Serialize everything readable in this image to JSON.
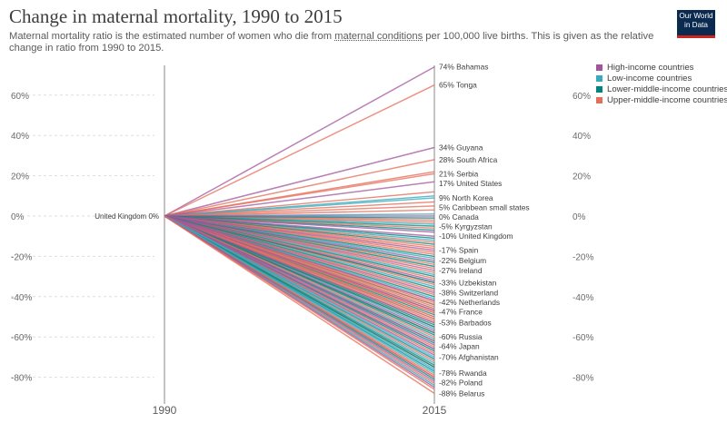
{
  "header": {
    "title": "Change in maternal mortality, 1990 to 2015",
    "subtitle_pre": "Maternal mortality ratio is the estimated number of women who die from ",
    "subtitle_link": "maternal conditions",
    "subtitle_post": " per 100,000 live births. This is given as the relative change in ratio from 1990 to 2015."
  },
  "logo": {
    "line1": "Our World",
    "line2": "in Data"
  },
  "colors": {
    "high": "#a2559c",
    "low": "#38aaba",
    "lower_middle": "#00847e",
    "upper_middle": "#e56e5a",
    "axis": "#888888",
    "grid": "#dddddd"
  },
  "legend": [
    {
      "name": "High-income countries",
      "color": "#a2559c"
    },
    {
      "name": "Low-income countries",
      "color": "#38aaba"
    },
    {
      "name": "Lower-middle-income countries",
      "color": "#00847e"
    },
    {
      "name": "Upper-middle-income countries",
      "color": "#e56e5a"
    }
  ],
  "chart_data": {
    "type": "line",
    "title": "Change in maternal mortality, 1990 to 2015",
    "x": [
      "1990",
      "2015"
    ],
    "ylim": [
      -90,
      75
    ],
    "yticks": [
      60,
      40,
      20,
      0,
      -20,
      -40,
      -60,
      -80
    ],
    "ytick_labels": [
      "60%",
      "40%",
      "20%",
      "0%",
      "-20%",
      "-40%",
      "-60%",
      "-80%"
    ],
    "start_label": "United Kingdom",
    "start_value_label": "0%",
    "labeled_series": [
      {
        "name": "Bahamas",
        "label": "74%",
        "value": 74,
        "group": "high"
      },
      {
        "name": "Tonga",
        "label": "65%",
        "value": 65,
        "group": "upper_middle"
      },
      {
        "name": "Guyana",
        "label": "34%",
        "value": 34,
        "group": "high"
      },
      {
        "name": "South Africa",
        "label": "28%",
        "value": 28,
        "group": "upper_middle"
      },
      {
        "name": "Serbia",
        "label": "21%",
        "value": 21,
        "group": "upper_middle"
      },
      {
        "name": "United States",
        "label": "17%",
        "value": 17,
        "group": "high"
      },
      {
        "name": "North Korea",
        "label": "9%",
        "value": 9,
        "group": "low"
      },
      {
        "name": "Caribbean small states",
        "label": "5%",
        "value": 5,
        "group": "upper_middle"
      },
      {
        "name": "Canada",
        "label": "0%",
        "value": 0,
        "group": "high"
      },
      {
        "name": "Kyrgyzstan",
        "label": "-5%",
        "value": -5,
        "group": "lower_middle"
      },
      {
        "name": "United Kingdom",
        "label": "-10%",
        "value": -10,
        "group": "high"
      },
      {
        "name": "Spain",
        "label": "-17%",
        "value": -17,
        "group": "high"
      },
      {
        "name": "Belgium",
        "label": "-22%",
        "value": -22,
        "group": "high"
      },
      {
        "name": "Ireland",
        "label": "-27%",
        "value": -27,
        "group": "high"
      },
      {
        "name": "Uzbekistan",
        "label": "-33%",
        "value": -33,
        "group": "lower_middle"
      },
      {
        "name": "Switzerland",
        "label": "-38%",
        "value": -38,
        "group": "high"
      },
      {
        "name": "Netherlands",
        "label": "-42%",
        "value": -42,
        "group": "high"
      },
      {
        "name": "France",
        "label": "-47%",
        "value": -47,
        "group": "high"
      },
      {
        "name": "Barbados",
        "label": "-53%",
        "value": -53,
        "group": "high"
      },
      {
        "name": "Russia",
        "label": "-60%",
        "value": -60,
        "group": "upper_middle"
      },
      {
        "name": "Japan",
        "label": "-64%",
        "value": -64,
        "group": "high"
      },
      {
        "name": "Afghanistan",
        "label": "-70%",
        "value": -70,
        "group": "low"
      },
      {
        "name": "Rwanda",
        "label": "-78%",
        "value": -78,
        "group": "low"
      },
      {
        "name": "Poland",
        "label": "-82%",
        "value": -82,
        "group": "high"
      },
      {
        "name": "Belarus",
        "label": "-88%",
        "value": -88,
        "group": "upper_middle"
      }
    ],
    "unlabeled_values": [
      [
        -3,
        "upper_middle"
      ],
      [
        -7,
        "lower_middle"
      ],
      [
        -8,
        "high"
      ],
      [
        -12,
        "low"
      ],
      [
        -13,
        "upper_middle"
      ],
      [
        -14,
        "lower_middle"
      ],
      [
        -15,
        "upper_middle"
      ],
      [
        -19,
        "upper_middle"
      ],
      [
        -20,
        "lower_middle"
      ],
      [
        -21,
        "low"
      ],
      [
        -24,
        "upper_middle"
      ],
      [
        -25,
        "lower_middle"
      ],
      [
        -26,
        "upper_middle"
      ],
      [
        -28,
        "upper_middle"
      ],
      [
        -29,
        "low"
      ],
      [
        -30,
        "lower_middle"
      ],
      [
        -31,
        "upper_middle"
      ],
      [
        -32,
        "high"
      ],
      [
        -34,
        "upper_middle"
      ],
      [
        -35,
        "low"
      ],
      [
        -36,
        "lower_middle"
      ],
      [
        -37,
        "upper_middle"
      ],
      [
        -39,
        "upper_middle"
      ],
      [
        -40,
        "lower_middle"
      ],
      [
        -41,
        "low"
      ],
      [
        -43,
        "upper_middle"
      ],
      [
        -44,
        "lower_middle"
      ],
      [
        -45,
        "upper_middle"
      ],
      [
        -46,
        "low"
      ],
      [
        -48,
        "upper_middle"
      ],
      [
        -49,
        "lower_middle"
      ],
      [
        -50,
        "upper_middle"
      ],
      [
        -51,
        "low"
      ],
      [
        -52,
        "upper_middle"
      ],
      [
        -54,
        "lower_middle"
      ],
      [
        -55,
        "upper_middle"
      ],
      [
        -56,
        "low"
      ],
      [
        -57,
        "high"
      ],
      [
        -58,
        "upper_middle"
      ],
      [
        -59,
        "lower_middle"
      ],
      [
        -61,
        "low"
      ],
      [
        -62,
        "upper_middle"
      ],
      [
        -63,
        "lower_middle"
      ],
      [
        -65,
        "upper_middle"
      ],
      [
        -66,
        "low"
      ],
      [
        -67,
        "lower_middle"
      ],
      [
        -68,
        "upper_middle"
      ],
      [
        -69,
        "high"
      ],
      [
        -71,
        "lower_middle"
      ],
      [
        -72,
        "upper_middle"
      ],
      [
        -73,
        "low"
      ],
      [
        -74,
        "lower_middle"
      ],
      [
        -75,
        "upper_middle"
      ],
      [
        -76,
        "low"
      ],
      [
        -77,
        "lower_middle"
      ],
      [
        -79,
        "upper_middle"
      ],
      [
        -80,
        "high"
      ],
      [
        -81,
        "lower_middle"
      ],
      [
        -83,
        "upper_middle"
      ],
      [
        -84,
        "low"
      ],
      [
        -85,
        "high"
      ],
      [
        -86,
        "upper_middle"
      ],
      [
        -2,
        "upper_middle"
      ],
      [
        -4,
        "low"
      ],
      [
        -6,
        "upper_middle"
      ],
      [
        -11,
        "lower_middle"
      ],
      [
        -16,
        "upper_middle"
      ],
      [
        -18,
        "upper_middle"
      ],
      [
        -23,
        "lower_middle"
      ],
      [
        -47,
        "upper_middle"
      ],
      [
        -46,
        "upper_middle"
      ],
      [
        -50,
        "upper_middle"
      ],
      [
        -44,
        "upper_middle"
      ],
      [
        -53,
        "upper_middle"
      ],
      [
        -42,
        "upper_middle"
      ],
      [
        -48,
        "upper_middle"
      ],
      [
        -51,
        "upper_middle"
      ],
      [
        -55,
        "lower_middle"
      ],
      [
        -33,
        "upper_middle"
      ],
      [
        -66,
        "high"
      ],
      [
        -62,
        "high"
      ],
      [
        -58,
        "lower_middle"
      ],
      [
        -71,
        "low"
      ],
      [
        -75,
        "lower_middle"
      ],
      [
        -77,
        "low"
      ],
      [
        -80,
        "upper_middle"
      ],
      [
        10,
        "low"
      ],
      [
        22,
        "upper_middle"
      ],
      [
        12,
        "upper_middle"
      ],
      [
        7,
        "upper_middle"
      ],
      [
        3,
        "upper_middle"
      ],
      [
        1,
        "low"
      ],
      [
        -1,
        "lower_middle"
      ]
    ]
  }
}
